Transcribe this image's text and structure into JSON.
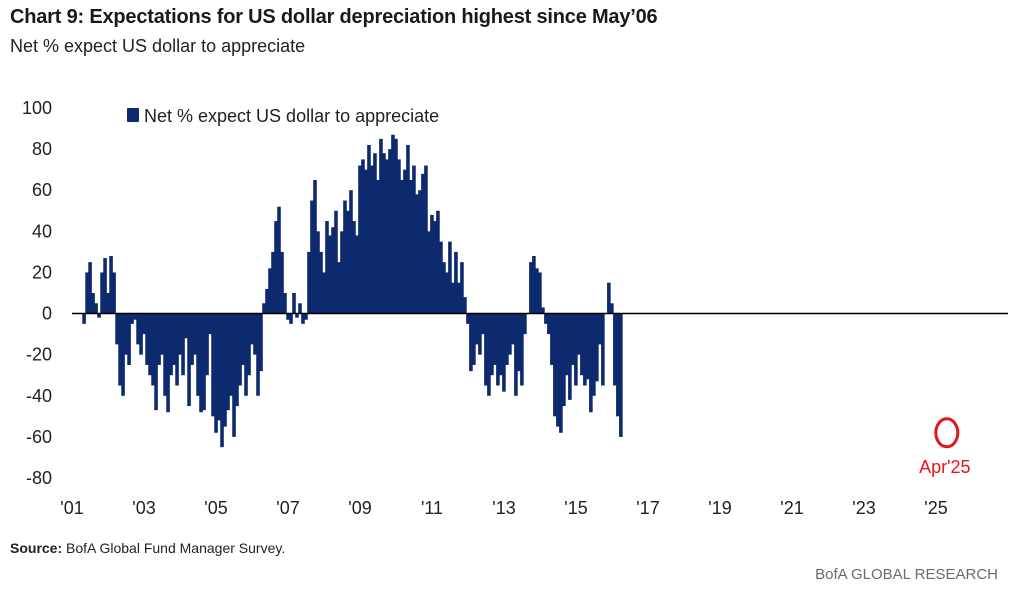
{
  "header": {
    "title": "Chart 9: Expectations for US dollar depreciation highest since May’06",
    "subtitle": "Net % expect US dollar to appreciate"
  },
  "footer": {
    "source_label": "Source:",
    "source_text": "BofA Global Fund Manager Survey.",
    "brand": "BofA GLOBAL RESEARCH"
  },
  "colors": {
    "bar": "#0e2a6e",
    "annotation": "#e8141b",
    "axis": "#000000"
  },
  "chart_data": {
    "type": "bar",
    "title": "Chart 9: Expectations for US dollar depreciation highest since May’06",
    "subtitle": "Net % expect US dollar to appreciate",
    "xlabel": "",
    "ylabel": "",
    "ylim": [
      -80,
      100
    ],
    "xlim": [
      2001.0,
      2027.0
    ],
    "y_ticks": [
      100,
      80,
      60,
      40,
      20,
      0,
      -20,
      -40,
      -60,
      -80
    ],
    "y_tick_labels": [
      "100",
      "80",
      "60",
      "40",
      "20",
      "0",
      "-20",
      "-40",
      "-60",
      "-80"
    ],
    "x_ticks": [
      2001,
      2003,
      2005,
      2007,
      2009,
      2011,
      2013,
      2015,
      2017,
      2019,
      2021,
      2023,
      2025
    ],
    "x_tick_labels": [
      "'01",
      "'03",
      "'05",
      "'07",
      "'09",
      "'11",
      "'13",
      "'15",
      "'17",
      "'19",
      "'21",
      "'23",
      "'25"
    ],
    "legend": {
      "label": "Net % expect US dollar to appreciate",
      "position": "top-left"
    },
    "annotation": {
      "label": "Apr'25",
      "x": 2025.3,
      "y": -58,
      "shape": "circle"
    },
    "series": [
      {
        "name": "Net % expect US dollar to appreciate",
        "start": 2001.33,
        "step": 0.0833,
        "values": [
          -5,
          20,
          25,
          10,
          5,
          -2,
          20,
          27,
          10,
          28,
          20,
          -15,
          -35,
          -40,
          -20,
          -25,
          -5,
          -3,
          -15,
          -20,
          -10,
          -25,
          -30,
          -35,
          -47,
          -25,
          -20,
          -40,
          -48,
          -30,
          -25,
          -35,
          -20,
          -30,
          -12,
          -45,
          -25,
          -20,
          -40,
          -48,
          -47,
          -30,
          -10,
          -50,
          -58,
          -52,
          -65,
          -55,
          -47,
          -40,
          -60,
          -45,
          -35,
          -25,
          -40,
          -30,
          -15,
          -20,
          -40,
          -28,
          5,
          12,
          22,
          30,
          45,
          52,
          30,
          10,
          -3,
          -5,
          10,
          -2,
          5,
          -5,
          -3,
          30,
          55,
          65,
          40,
          30,
          20,
          45,
          38,
          42,
          50,
          25,
          40,
          55,
          50,
          60,
          45,
          38,
          72,
          75,
          70,
          82,
          72,
          78,
          65,
          85,
          78,
          75,
          80,
          87,
          85,
          75,
          65,
          70,
          82,
          65,
          72,
          58,
          60,
          68,
          72,
          40,
          48,
          45,
          50,
          35,
          25,
          20,
          35,
          15,
          30,
          15,
          25,
          8,
          -5,
          -28,
          -25,
          -15,
          -20,
          -10,
          -35,
          -40,
          -30,
          -25,
          -35,
          -30,
          -38,
          -25,
          -20,
          -15,
          -40,
          -28,
          -35,
          -10,
          0,
          25,
          28,
          22,
          20,
          3,
          -5,
          -10,
          -25,
          -50,
          -55,
          -58,
          -45,
          -30,
          -42,
          -25,
          -35,
          -20,
          -30,
          -35,
          -32,
          -48,
          -40,
          -33,
          -15,
          -35,
          0,
          15,
          5,
          -35,
          -50,
          -60
        ]
      }
    ]
  }
}
